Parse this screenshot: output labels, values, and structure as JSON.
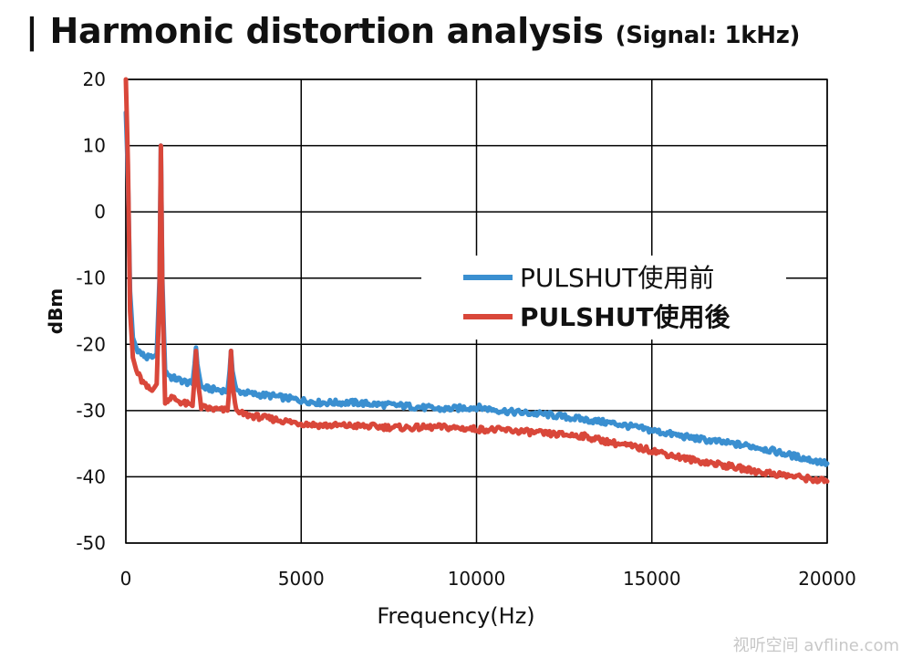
{
  "title": {
    "main": "| Harmonic distortion analysis",
    "sub": "(Signal: 1kHz)"
  },
  "watermark": "视听空间 avfline.com",
  "chart_data": {
    "type": "line",
    "xlabel": "Frequency(Hz)",
    "ylabel": "dBm",
    "xlim": [
      0,
      20000
    ],
    "ylim": [
      -50,
      20
    ],
    "xticks": [
      0,
      5000,
      10000,
      15000,
      20000
    ],
    "yticks": [
      -50,
      -40,
      -30,
      -20,
      -10,
      0,
      10,
      20
    ],
    "grid": true,
    "legend_position": "center-right",
    "series": [
      {
        "name": "PULSHUT使用前",
        "color": "#3a8fd0",
        "points": [
          [
            0,
            15
          ],
          [
            60,
            5
          ],
          [
            120,
            -12
          ],
          [
            200,
            -19
          ],
          [
            300,
            -20.5
          ],
          [
            450,
            -21.5
          ],
          [
            600,
            -22
          ],
          [
            750,
            -22
          ],
          [
            880,
            -21.5
          ],
          [
            960,
            -10
          ],
          [
            1000,
            10
          ],
          [
            1040,
            -10
          ],
          [
            1120,
            -24
          ],
          [
            1300,
            -25
          ],
          [
            1600,
            -25.5
          ],
          [
            1900,
            -26
          ],
          [
            1960,
            -23
          ],
          [
            2000,
            -20.5
          ],
          [
            2040,
            -23
          ],
          [
            2150,
            -26.5
          ],
          [
            2500,
            -26.8
          ],
          [
            2900,
            -27
          ],
          [
            2960,
            -24
          ],
          [
            3000,
            -21
          ],
          [
            3040,
            -24
          ],
          [
            3150,
            -27
          ],
          [
            3600,
            -27.5
          ],
          [
            4200,
            -27.8
          ],
          [
            4800,
            -28.3
          ],
          [
            5500,
            -28.8
          ],
          [
            6500,
            -28.8
          ],
          [
            7000,
            -29
          ],
          [
            8000,
            -29.3
          ],
          [
            9000,
            -29.8
          ],
          [
            10000,
            -29.5
          ],
          [
            11000,
            -30.2
          ],
          [
            12000,
            -30.6
          ],
          [
            13000,
            -31.3
          ],
          [
            14000,
            -32
          ],
          [
            15000,
            -33
          ],
          [
            16000,
            -34
          ],
          [
            17000,
            -34.8
          ],
          [
            18000,
            -35.5
          ],
          [
            19000,
            -36.8
          ],
          [
            20000,
            -38
          ]
        ]
      },
      {
        "name": "PULSHUT使用後",
        "color": "#d9473a",
        "points": [
          [
            0,
            20
          ],
          [
            60,
            7
          ],
          [
            120,
            -15
          ],
          [
            200,
            -22
          ],
          [
            300,
            -24
          ],
          [
            450,
            -25.5
          ],
          [
            600,
            -26.5
          ],
          [
            750,
            -27
          ],
          [
            880,
            -26
          ],
          [
            960,
            -12
          ],
          [
            1000,
            10
          ],
          [
            1040,
            -12
          ],
          [
            1120,
            -28.5
          ],
          [
            1300,
            -28
          ],
          [
            1600,
            -28.8
          ],
          [
            1900,
            -29.3
          ],
          [
            1960,
            -25
          ],
          [
            2000,
            -21
          ],
          [
            2040,
            -25
          ],
          [
            2150,
            -29.5
          ],
          [
            2500,
            -29.8
          ],
          [
            2900,
            -30
          ],
          [
            2960,
            -26
          ],
          [
            3000,
            -21
          ],
          [
            3040,
            -26
          ],
          [
            3150,
            -30.3
          ],
          [
            3600,
            -30.8
          ],
          [
            4200,
            -31.3
          ],
          [
            4800,
            -31.8
          ],
          [
            5500,
            -32.2
          ],
          [
            6500,
            -32.3
          ],
          [
            7000,
            -32.4
          ],
          [
            8000,
            -32.6
          ],
          [
            9000,
            -32.5
          ],
          [
            10000,
            -32.8
          ],
          [
            11000,
            -33
          ],
          [
            12000,
            -33.5
          ],
          [
            13000,
            -33.8
          ],
          [
            14000,
            -35
          ],
          [
            15000,
            -36
          ],
          [
            16000,
            -37.3
          ],
          [
            17000,
            -38.2
          ],
          [
            18000,
            -39.2
          ],
          [
            19000,
            -39.9
          ],
          [
            20000,
            -40.7
          ]
        ]
      }
    ]
  },
  "colors": {
    "background": "#ffffff",
    "grid": "#000000",
    "blue": "#3a8fd0",
    "red": "#d9473a"
  }
}
